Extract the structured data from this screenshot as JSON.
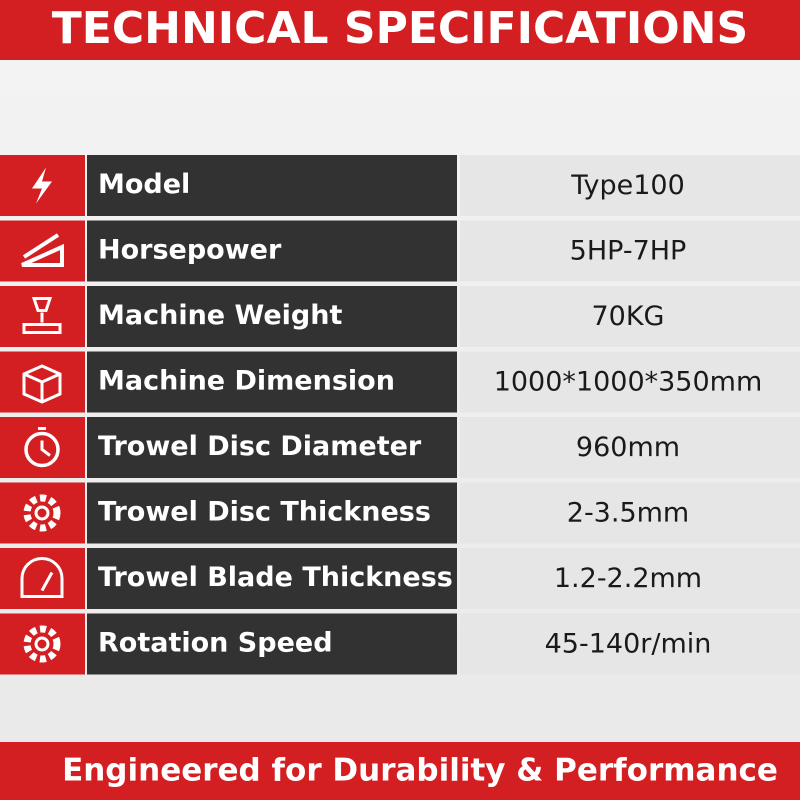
{
  "header": {
    "title": "TECHNICAL SPECIFICATIONS"
  },
  "table": {
    "rows": [
      {
        "label": "Model",
        "value": "Type100"
      },
      {
        "label": "Horsepower",
        "value": "5HP-7HP"
      },
      {
        "label": "Machine Weight",
        "value": "70KG"
      },
      {
        "label": "Machine Dimension",
        "value": "1000*1000*350mm"
      },
      {
        "label": "Trowel Disc Diameter",
        "value": "960mm"
      },
      {
        "label": "Trowel Disc Thickness",
        "value": "2-3.5mm"
      },
      {
        "label": "Trowel Blade Thickness",
        "value": "1.2-2.2mm"
      },
      {
        "label": "Rotation Speed",
        "value": "45-140r/min"
      }
    ]
  },
  "footer": {
    "text": "Engineered for Durability & Performance"
  }
}
